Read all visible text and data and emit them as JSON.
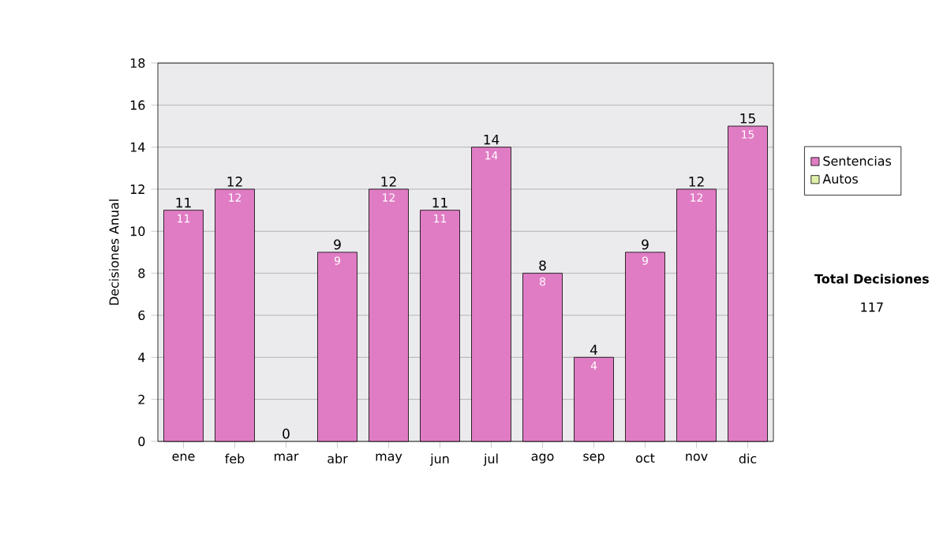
{
  "chart_data": {
    "type": "bar",
    "stacked": true,
    "ylabel": "Decisiones Anual",
    "categories": [
      "ene",
      "feb",
      "mar",
      "abr",
      "may",
      "jun",
      "jul",
      "ago",
      "sep",
      "oct",
      "nov",
      "dic"
    ],
    "series": [
      {
        "name": "Sentencias",
        "color": "#e07cc4",
        "values": [
          11,
          12,
          0,
          9,
          12,
          11,
          14,
          8,
          4,
          9,
          12,
          15
        ],
        "value_labels": [
          "11",
          "12",
          null,
          "9",
          "12",
          "11",
          "14",
          "8",
          "4",
          "9",
          "12",
          "15"
        ]
      },
      {
        "name": "Autos",
        "color": "#e0f0a8",
        "values": [
          0,
          0,
          0,
          0,
          0,
          0,
          0,
          0,
          0,
          0,
          0,
          0
        ]
      }
    ],
    "totals": [
      "11",
      "12",
      "0",
      "9",
      "12",
      "11",
      "14",
      "8",
      "4",
      "9",
      "12",
      "15"
    ],
    "ylim": [
      0,
      18
    ],
    "yticks": [
      0,
      2,
      4,
      6,
      8,
      10,
      12,
      14,
      16,
      18
    ],
    "grid": "y",
    "legend": "right",
    "annotations": [
      "**Total Decisiones**",
      "117"
    ]
  }
}
